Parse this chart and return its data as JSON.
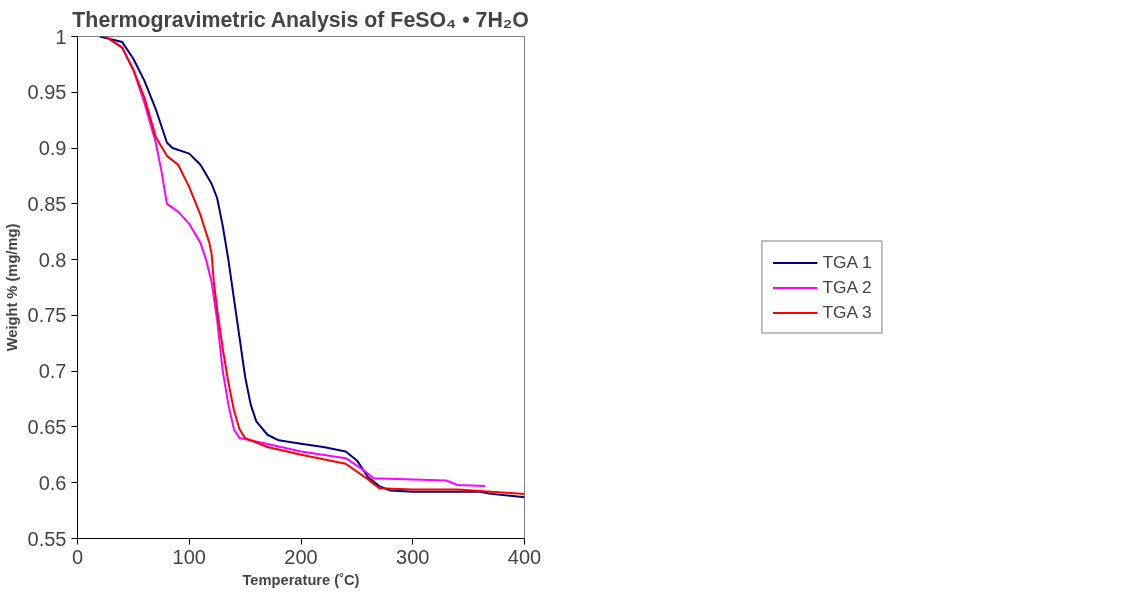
{
  "chart_data": {
    "type": "line",
    "title": "Thermogravimetric Analysis of FeSO₄ • 7H₂O",
    "xlabel": "Temperature (˚C)",
    "ylabel": "Weight % (mg/mg)",
    "xlim": [
      0,
      400
    ],
    "xticks": [
      0,
      100,
      200,
      300,
      400
    ],
    "ylim": [
      0.55,
      1
    ],
    "yticks": [
      0.55,
      0.6,
      0.65,
      0.7,
      0.75,
      0.8,
      0.85,
      0.9,
      0.95,
      1
    ],
    "grid": false,
    "legend": "right",
    "marker": "none",
    "line_style": "solid",
    "series": [
      {
        "name": "TGA 1",
        "color": "#000080",
        "x": [
          20,
          40,
          50,
          60,
          70,
          80,
          85,
          100,
          110,
          120,
          125,
          130,
          135,
          140,
          145,
          150,
          155,
          160,
          170,
          180,
          200,
          220,
          240,
          250,
          260,
          270,
          280,
          300,
          360,
          370,
          400
        ],
        "values": [
          1.0,
          0.995,
          0.98,
          0.96,
          0.935,
          0.905,
          0.9,
          0.895,
          0.885,
          0.868,
          0.855,
          0.83,
          0.8,
          0.765,
          0.73,
          0.695,
          0.67,
          0.655,
          0.643,
          0.638,
          0.635,
          0.632,
          0.628,
          0.62,
          0.605,
          0.597,
          0.593,
          0.592,
          0.592,
          0.59,
          0.587
        ]
      },
      {
        "name": "TGA 2",
        "color": "#ff00ff",
        "x": [
          25,
          40,
          50,
          60,
          70,
          75,
          80,
          90,
          100,
          110,
          115,
          120,
          125,
          130,
          135,
          140,
          145,
          160,
          200,
          240,
          255,
          265,
          300,
          330,
          340,
          365
        ],
        "values": [
          1.0,
          0.99,
          0.97,
          0.94,
          0.905,
          0.88,
          0.85,
          0.843,
          0.832,
          0.815,
          0.8,
          0.78,
          0.745,
          0.7,
          0.67,
          0.648,
          0.64,
          0.637,
          0.628,
          0.622,
          0.612,
          0.604,
          0.603,
          0.602,
          0.598,
          0.597
        ]
      },
      {
        "name": "TGA 3",
        "color": "#ff0000",
        "x": [
          25,
          40,
          50,
          60,
          70,
          80,
          90,
          100,
          110,
          118,
          120,
          122,
          125,
          130,
          135,
          140,
          145,
          150,
          170,
          200,
          240,
          260,
          270,
          300,
          340,
          370,
          400
        ],
        "values": [
          1.0,
          0.99,
          0.97,
          0.945,
          0.91,
          0.893,
          0.885,
          0.865,
          0.84,
          0.815,
          0.805,
          0.78,
          0.755,
          0.72,
          0.69,
          0.665,
          0.648,
          0.64,
          0.632,
          0.625,
          0.617,
          0.603,
          0.595,
          0.594,
          0.594,
          0.592,
          0.59
        ]
      }
    ]
  }
}
